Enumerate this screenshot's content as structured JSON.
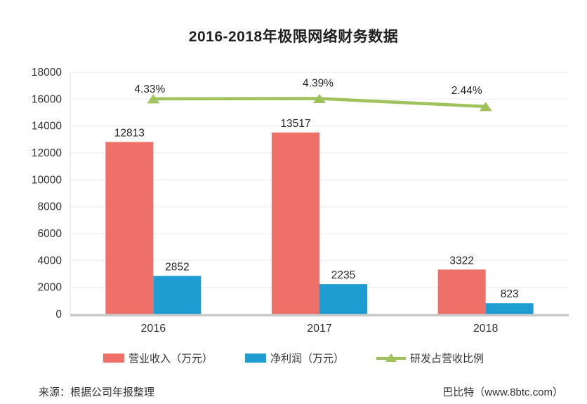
{
  "title": "2016-2018年极限网络财务数据",
  "footer": {
    "source": "来源：根据公司年报整理",
    "brand": "巴比特（www.8btc.com）"
  },
  "colors": {
    "revenue_bar": "#ee7069",
    "profit_bar": "#1e9dd2",
    "ratio_line": "#a0c25c",
    "grid_line": "#f1f1f1",
    "axis_line": "#c8c8c8",
    "left_axis_line": "#e2e2e2",
    "tick_text": "#333333",
    "label_text": "#262626"
  },
  "chart_data": {
    "type": "bar",
    "title": "2016-2018年极限网络财务数据",
    "categories": [
      "2016",
      "2017",
      "2018"
    ],
    "series": [
      {
        "name": "营业收入（万元）",
        "kind": "bar",
        "color_key": "revenue_bar",
        "values": [
          12813,
          13517,
          3322
        ]
      },
      {
        "name": "净利润（万元）",
        "kind": "bar",
        "color_key": "profit_bar",
        "values": [
          2852,
          2235,
          823
        ]
      },
      {
        "name": "研发占营收比例",
        "kind": "line",
        "color_key": "ratio_line",
        "values": [
          4.33,
          4.39,
          2.44
        ],
        "value_labels": [
          "4.33%",
          "4.39%",
          "2.44%"
        ]
      }
    ],
    "xlabel": "",
    "ylabel": "",
    "ylim": [
      0,
      18000
    ],
    "ytick_step": 2000,
    "ytick_labels": [
      "0",
      "2000",
      "4000",
      "6000",
      "8000",
      "10000",
      "12000",
      "14000",
      "16000",
      "18000"
    ],
    "grid": true,
    "legend_position": "bottom"
  }
}
